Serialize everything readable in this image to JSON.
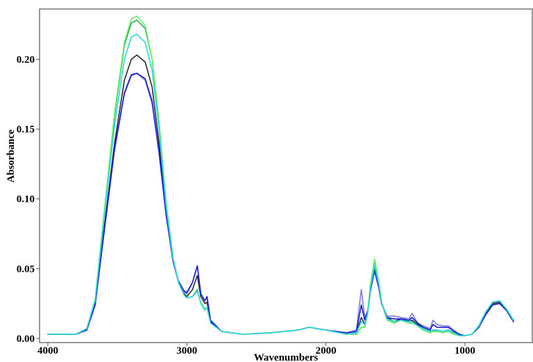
{
  "chart_data": {
    "type": "line",
    "title": "",
    "xlabel": "Wavenumbers",
    "ylabel": "Absorbance",
    "xlim": [
      4000,
      650
    ],
    "ylim": [
      0.0,
      0.236
    ],
    "x_reversed": true,
    "grid": false,
    "x_ticks": [
      4000,
      3000,
      2000,
      1000
    ],
    "x_tick_labels": [
      "4000",
      "3000",
      "2000",
      "1000"
    ],
    "y_ticks": [
      0.0,
      0.05,
      0.1,
      0.15,
      0.2
    ],
    "y_tick_labels": [
      "0.00",
      "0.05",
      "0.10",
      "0.15",
      "0.20"
    ],
    "x": [
      4000,
      3800,
      3720,
      3660,
      3600,
      3520,
      3450,
      3400,
      3360,
      3300,
      3250,
      3200,
      3150,
      3100,
      3060,
      3020,
      3000,
      2960,
      2925,
      2900,
      2870,
      2855,
      2830,
      2750,
      2600,
      2400,
      2200,
      2120,
      2000,
      1850,
      1780,
      1745,
      1720,
      1700,
      1680,
      1650,
      1620,
      1600,
      1560,
      1510,
      1460,
      1400,
      1380,
      1340,
      1300,
      1250,
      1230,
      1200,
      1160,
      1120,
      1080,
      1040,
      1000,
      950,
      900,
      850,
      800,
      750,
      700,
      650
    ],
    "series": [
      {
        "color": "#2a2a2a",
        "values": [
          0.003,
          0.003,
          0.006,
          0.025,
          0.075,
          0.14,
          0.185,
          0.2,
          0.203,
          0.198,
          0.18,
          0.14,
          0.09,
          0.055,
          0.04,
          0.032,
          0.03,
          0.035,
          0.045,
          0.03,
          0.025,
          0.026,
          0.012,
          0.005,
          0.003,
          0.004,
          0.006,
          0.008,
          0.006,
          0.003,
          0.004,
          0.015,
          0.01,
          0.018,
          0.035,
          0.05,
          0.038,
          0.026,
          0.015,
          0.012,
          0.014,
          0.012,
          0.013,
          0.01,
          0.007,
          0.005,
          0.006,
          0.006,
          0.005,
          0.006,
          0.004,
          0.002,
          0.002,
          0.003,
          0.008,
          0.018,
          0.025,
          0.026,
          0.02,
          0.012
        ]
      },
      {
        "color": "#7a7ae6",
        "values": [
          0.003,
          0.003,
          0.006,
          0.024,
          0.072,
          0.135,
          0.175,
          0.188,
          0.19,
          0.185,
          0.168,
          0.132,
          0.088,
          0.055,
          0.04,
          0.033,
          0.032,
          0.04,
          0.052,
          0.032,
          0.027,
          0.03,
          0.013,
          0.005,
          0.003,
          0.004,
          0.006,
          0.008,
          0.006,
          0.004,
          0.006,
          0.035,
          0.015,
          0.02,
          0.035,
          0.048,
          0.036,
          0.025,
          0.016,
          0.016,
          0.015,
          0.014,
          0.018,
          0.011,
          0.009,
          0.007,
          0.013,
          0.01,
          0.009,
          0.009,
          0.006,
          0.003,
          0.002,
          0.003,
          0.008,
          0.017,
          0.024,
          0.025,
          0.02,
          0.012
        ]
      },
      {
        "color": "#1a1ad6",
        "values": [
          0.003,
          0.003,
          0.006,
          0.024,
          0.073,
          0.136,
          0.176,
          0.189,
          0.19,
          0.186,
          0.17,
          0.134,
          0.09,
          0.056,
          0.041,
          0.034,
          0.033,
          0.04,
          0.052,
          0.032,
          0.027,
          0.03,
          0.013,
          0.005,
          0.003,
          0.004,
          0.006,
          0.008,
          0.006,
          0.004,
          0.005,
          0.024,
          0.013,
          0.019,
          0.034,
          0.049,
          0.037,
          0.025,
          0.015,
          0.014,
          0.014,
          0.013,
          0.015,
          0.011,
          0.008,
          0.006,
          0.01,
          0.008,
          0.008,
          0.008,
          0.005,
          0.003,
          0.002,
          0.003,
          0.008,
          0.017,
          0.024,
          0.025,
          0.02,
          0.012
        ]
      },
      {
        "color": "#22b14c",
        "values": [
          0.003,
          0.003,
          0.007,
          0.028,
          0.085,
          0.16,
          0.21,
          0.226,
          0.228,
          0.222,
          0.2,
          0.155,
          0.098,
          0.058,
          0.04,
          0.031,
          0.029,
          0.03,
          0.035,
          0.025,
          0.02,
          0.022,
          0.011,
          0.005,
          0.003,
          0.004,
          0.006,
          0.008,
          0.006,
          0.003,
          0.003,
          0.008,
          0.008,
          0.018,
          0.038,
          0.056,
          0.04,
          0.026,
          0.013,
          0.011,
          0.013,
          0.011,
          0.011,
          0.009,
          0.006,
          0.004,
          0.005,
          0.005,
          0.004,
          0.005,
          0.003,
          0.002,
          0.002,
          0.003,
          0.009,
          0.019,
          0.026,
          0.027,
          0.021,
          0.013
        ]
      },
      {
        "color": "#66ee66",
        "values": [
          0.003,
          0.003,
          0.007,
          0.028,
          0.086,
          0.162,
          0.212,
          0.229,
          0.231,
          0.224,
          0.2,
          0.155,
          0.098,
          0.058,
          0.04,
          0.031,
          0.029,
          0.03,
          0.034,
          0.025,
          0.02,
          0.022,
          0.011,
          0.005,
          0.003,
          0.004,
          0.006,
          0.008,
          0.006,
          0.003,
          0.003,
          0.008,
          0.008,
          0.018,
          0.039,
          0.057,
          0.041,
          0.026,
          0.013,
          0.011,
          0.013,
          0.011,
          0.011,
          0.009,
          0.006,
          0.004,
          0.005,
          0.005,
          0.004,
          0.005,
          0.003,
          0.002,
          0.002,
          0.003,
          0.009,
          0.019,
          0.026,
          0.027,
          0.021,
          0.013
        ]
      },
      {
        "color": "#2ad6e6",
        "values": [
          0.003,
          0.003,
          0.007,
          0.027,
          0.082,
          0.153,
          0.2,
          0.216,
          0.218,
          0.212,
          0.192,
          0.15,
          0.095,
          0.057,
          0.04,
          0.031,
          0.029,
          0.03,
          0.034,
          0.026,
          0.021,
          0.022,
          0.011,
          0.005,
          0.003,
          0.004,
          0.006,
          0.008,
          0.006,
          0.003,
          0.004,
          0.012,
          0.01,
          0.018,
          0.036,
          0.052,
          0.039,
          0.026,
          0.014,
          0.012,
          0.013,
          0.012,
          0.012,
          0.009,
          0.007,
          0.005,
          0.006,
          0.006,
          0.005,
          0.006,
          0.004,
          0.002,
          0.002,
          0.003,
          0.009,
          0.019,
          0.026,
          0.027,
          0.021,
          0.013
        ]
      }
    ]
  }
}
